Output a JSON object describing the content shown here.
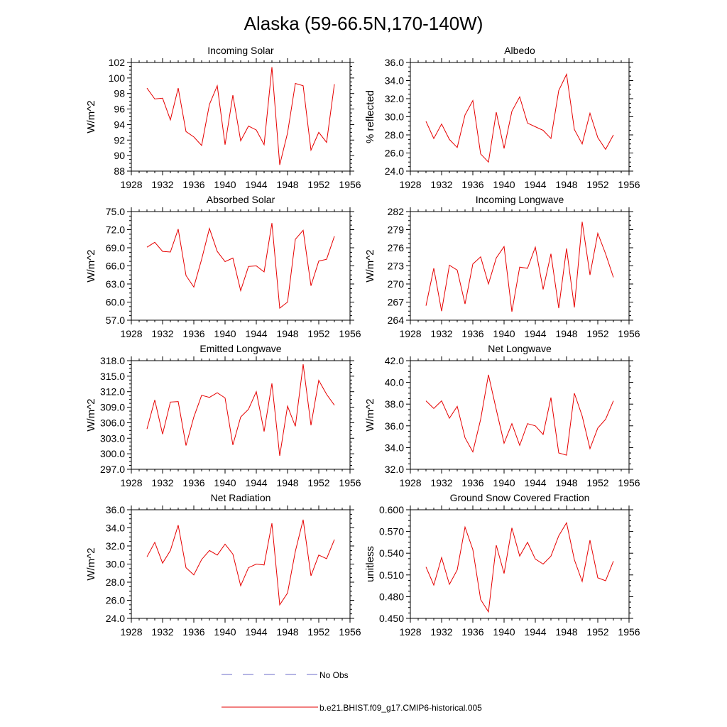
{
  "figure": {
    "title": "Alaska (59-66.5N,170-140W)"
  },
  "legend": [
    {
      "label": "No Obs",
      "color": "#6b6bc8",
      "style": "dashed"
    },
    {
      "label": "b.e21.BHIST.f09_g17.CMIP6-historical.005",
      "color": "#e60000",
      "style": "solid"
    }
  ],
  "chart_data": [
    {
      "type": "line",
      "title": "Incoming Solar",
      "ylabel": "W/m^2",
      "xlim": [
        1928,
        1956
      ],
      "ylim": [
        88,
        102
      ],
      "yticks": [
        88,
        90,
        92,
        94,
        96,
        98,
        100,
        102
      ],
      "ytick_labels": [
        "88",
        "90",
        "92",
        "94",
        "96",
        "98",
        "100",
        "102"
      ],
      "xticks": [
        1928,
        1932,
        1936,
        1940,
        1944,
        1948,
        1952,
        1956
      ],
      "xtick_labels": [
        "1928",
        "1932",
        "1936",
        "1940",
        "1944",
        "1948",
        "1952",
        "1956"
      ],
      "series": [
        {
          "color": "#e60000",
          "x": [
            1930,
            1931,
            1932,
            1933,
            1934,
            1935,
            1936,
            1937,
            1938,
            1939,
            1940,
            1941,
            1942,
            1943,
            1944,
            1945,
            1946,
            1947,
            1948,
            1949,
            1950,
            1951,
            1952,
            1953,
            1954
          ],
          "y": [
            98.7,
            97.3,
            97.4,
            94.6,
            98.7,
            93.1,
            92.4,
            91.3,
            96.6,
            99.0,
            91.4,
            97.8,
            91.9,
            93.8,
            93.3,
            91.4,
            101.4,
            88.8,
            92.9,
            99.3,
            99.0,
            90.7,
            93.0,
            91.7,
            99.2
          ]
        }
      ]
    },
    {
      "type": "line",
      "title": "Albedo",
      "ylabel": "% reflected",
      "xlim": [
        1928,
        1956
      ],
      "ylim": [
        24,
        36
      ],
      "yticks": [
        24,
        26,
        28,
        30,
        32,
        34,
        36
      ],
      "ytick_labels": [
        "24.0",
        "26.0",
        "28.0",
        "30.0",
        "32.0",
        "34.0",
        "36.0"
      ],
      "xticks": [
        1928,
        1932,
        1936,
        1940,
        1944,
        1948,
        1952,
        1956
      ],
      "xtick_labels": [
        "1928",
        "1932",
        "1936",
        "1940",
        "1944",
        "1948",
        "1952",
        "1956"
      ],
      "series": [
        {
          "color": "#e60000",
          "x": [
            1930,
            1931,
            1932,
            1933,
            1934,
            1935,
            1936,
            1937,
            1938,
            1939,
            1940,
            1941,
            1942,
            1943,
            1944,
            1945,
            1946,
            1947,
            1948,
            1949,
            1950,
            1951,
            1952,
            1953,
            1954
          ],
          "y": [
            29.5,
            27.6,
            29.2,
            27.5,
            26.6,
            30.2,
            31.8,
            25.9,
            25.0,
            30.5,
            26.5,
            30.6,
            32.2,
            29.3,
            28.9,
            28.5,
            27.6,
            32.9,
            34.7,
            28.6,
            27.0,
            30.4,
            27.7,
            26.4,
            28.0
          ]
        }
      ]
    },
    {
      "type": "line",
      "title": "Absorbed Solar",
      "ylabel": "W/m^2",
      "xlim": [
        1928,
        1956
      ],
      "ylim": [
        57,
        75
      ],
      "yticks": [
        57,
        60,
        63,
        66,
        69,
        72,
        75
      ],
      "ytick_labels": [
        "57.0",
        "60.0",
        "63.0",
        "66.0",
        "69.0",
        "72.0",
        "75.0"
      ],
      "xticks": [
        1928,
        1932,
        1936,
        1940,
        1944,
        1948,
        1952,
        1956
      ],
      "xtick_labels": [
        "1928",
        "1932",
        "1936",
        "1940",
        "1944",
        "1948",
        "1952",
        "1956"
      ],
      "series": [
        {
          "color": "#e60000",
          "x": [
            1930,
            1931,
            1932,
            1933,
            1934,
            1935,
            1936,
            1937,
            1938,
            1939,
            1940,
            1941,
            1942,
            1943,
            1944,
            1945,
            1946,
            1947,
            1948,
            1949,
            1950,
            1951,
            1952,
            1953,
            1954
          ],
          "y": [
            69.1,
            69.9,
            68.4,
            68.3,
            72.1,
            64.4,
            62.5,
            67.1,
            72.2,
            68.4,
            66.7,
            67.3,
            61.9,
            65.9,
            66.0,
            65.0,
            73.1,
            59.0,
            60.0,
            70.4,
            71.9,
            62.7,
            66.8,
            67.1,
            70.9
          ]
        }
      ]
    },
    {
      "type": "line",
      "title": "Incoming Longwave",
      "ylabel": "W/m^2",
      "xlim": [
        1928,
        1956
      ],
      "ylim": [
        264,
        282
      ],
      "yticks": [
        264,
        267,
        270,
        273,
        276,
        279,
        282
      ],
      "ytick_labels": [
        "264",
        "267",
        "270",
        "273",
        "276",
        "279",
        "282"
      ],
      "xticks": [
        1928,
        1932,
        1936,
        1940,
        1944,
        1948,
        1952,
        1956
      ],
      "xtick_labels": [
        "1928",
        "1932",
        "1936",
        "1940",
        "1944",
        "1948",
        "1952",
        "1956"
      ],
      "series": [
        {
          "color": "#e60000",
          "x": [
            1930,
            1931,
            1932,
            1933,
            1934,
            1935,
            1936,
            1937,
            1938,
            1939,
            1940,
            1941,
            1942,
            1943,
            1944,
            1945,
            1946,
            1947,
            1948,
            1949,
            1950,
            1951,
            1952,
            1953,
            1954
          ],
          "y": [
            266.4,
            272.6,
            265.5,
            273.1,
            272.3,
            266.7,
            273.3,
            274.5,
            270.0,
            274.3,
            276.2,
            265.4,
            272.8,
            272.6,
            276.1,
            269.1,
            275.0,
            266.0,
            275.9,
            266.1,
            280.3,
            271.5,
            278.4,
            275.0,
            271.1
          ]
        }
      ]
    },
    {
      "type": "line",
      "title": "Emitted Longwave",
      "ylabel": "W/m^2",
      "xlim": [
        1928,
        1956
      ],
      "ylim": [
        297,
        318
      ],
      "yticks": [
        297,
        300,
        303,
        306,
        309,
        312,
        315,
        318
      ],
      "ytick_labels": [
        "297.0",
        "300.0",
        "303.0",
        "306.0",
        "309.0",
        "312.0",
        "315.0",
        "318.0"
      ],
      "xticks": [
        1928,
        1932,
        1936,
        1940,
        1944,
        1948,
        1952,
        1956
      ],
      "xtick_labels": [
        "1928",
        "1932",
        "1936",
        "1940",
        "1944",
        "1948",
        "1952",
        "1956"
      ],
      "series": [
        {
          "color": "#e60000",
          "x": [
            1930,
            1931,
            1932,
            1933,
            1934,
            1935,
            1936,
            1937,
            1938,
            1939,
            1940,
            1941,
            1942,
            1943,
            1944,
            1945,
            1946,
            1947,
            1948,
            1949,
            1950,
            1951,
            1952,
            1953,
            1954
          ],
          "y": [
            304.8,
            310.4,
            303.8,
            310.0,
            310.1,
            301.6,
            307.1,
            311.3,
            310.9,
            311.8,
            310.8,
            301.7,
            307.1,
            308.6,
            312.0,
            304.3,
            313.6,
            299.6,
            309.2,
            305.3,
            317.3,
            305.5,
            314.2,
            311.5,
            309.4
          ]
        }
      ]
    },
    {
      "type": "line",
      "title": "Net Longwave",
      "ylabel": "W/m^2",
      "xlim": [
        1928,
        1956
      ],
      "ylim": [
        32,
        42
      ],
      "yticks": [
        32,
        34,
        36,
        38,
        40,
        42
      ],
      "ytick_labels": [
        "32.0",
        "34.0",
        "36.0",
        "38.0",
        "40.0",
        "42.0"
      ],
      "xticks": [
        1928,
        1932,
        1936,
        1940,
        1944,
        1948,
        1952,
        1956
      ],
      "xtick_labels": [
        "1928",
        "1932",
        "1936",
        "1940",
        "1944",
        "1948",
        "1952",
        "1956"
      ],
      "series": [
        {
          "color": "#e60000",
          "x": [
            1930,
            1931,
            1932,
            1933,
            1934,
            1935,
            1936,
            1937,
            1938,
            1939,
            1940,
            1941,
            1942,
            1943,
            1944,
            1945,
            1946,
            1947,
            1948,
            1949,
            1950,
            1951,
            1952,
            1953,
            1954
          ],
          "y": [
            38.3,
            37.6,
            38.3,
            36.7,
            37.8,
            34.9,
            33.6,
            36.6,
            40.7,
            37.5,
            34.4,
            36.2,
            34.2,
            36.2,
            36.0,
            35.2,
            38.6,
            33.5,
            33.3,
            39.0,
            36.9,
            33.9,
            35.8,
            36.6,
            38.3
          ]
        }
      ]
    },
    {
      "type": "line",
      "title": "Net Radiation",
      "ylabel": "W/m^2",
      "xlim": [
        1928,
        1956
      ],
      "ylim": [
        24,
        36
      ],
      "yticks": [
        24,
        26,
        28,
        30,
        32,
        34,
        36
      ],
      "ytick_labels": [
        "24.0",
        "26.0",
        "28.0",
        "30.0",
        "32.0",
        "34.0",
        "36.0"
      ],
      "xticks": [
        1928,
        1932,
        1936,
        1940,
        1944,
        1948,
        1952,
        1956
      ],
      "xtick_labels": [
        "1928",
        "1932",
        "1936",
        "1940",
        "1944",
        "1948",
        "1952",
        "1956"
      ],
      "series": [
        {
          "color": "#e60000",
          "x": [
            1930,
            1931,
            1932,
            1933,
            1934,
            1935,
            1936,
            1937,
            1938,
            1939,
            1940,
            1941,
            1942,
            1943,
            1944,
            1945,
            1946,
            1947,
            1948,
            1949,
            1950,
            1951,
            1952,
            1953,
            1954
          ],
          "y": [
            30.8,
            32.4,
            30.1,
            31.5,
            34.3,
            29.6,
            28.8,
            30.5,
            31.5,
            31.0,
            32.2,
            31.1,
            27.6,
            29.6,
            30.0,
            29.9,
            34.5,
            25.5,
            26.8,
            31.4,
            34.9,
            28.7,
            31.0,
            30.6,
            32.7
          ]
        }
      ]
    },
    {
      "type": "line",
      "title": "Ground Snow Covered Fraction",
      "ylabel": "unitless",
      "xlim": [
        1928,
        1956
      ],
      "ylim": [
        0.45,
        0.6
      ],
      "yticks": [
        0.45,
        0.48,
        0.51,
        0.54,
        0.57,
        0.6
      ],
      "ytick_labels": [
        "0.450",
        "0.480",
        "0.510",
        "0.540",
        "0.570",
        "0.600"
      ],
      "xticks": [
        1928,
        1932,
        1936,
        1940,
        1944,
        1948,
        1952,
        1956
      ],
      "xtick_labels": [
        "1928",
        "1932",
        "1936",
        "1940",
        "1944",
        "1948",
        "1952",
        "1956"
      ],
      "series": [
        {
          "color": "#e60000",
          "x": [
            1930,
            1931,
            1932,
            1933,
            1934,
            1935,
            1936,
            1937,
            1938,
            1939,
            1940,
            1941,
            1942,
            1943,
            1944,
            1945,
            1946,
            1947,
            1948,
            1949,
            1950,
            1951,
            1952,
            1953,
            1954
          ],
          "y": [
            0.521,
            0.496,
            0.534,
            0.497,
            0.517,
            0.576,
            0.545,
            0.476,
            0.459,
            0.551,
            0.512,
            0.575,
            0.536,
            0.555,
            0.532,
            0.525,
            0.536,
            0.564,
            0.582,
            0.531,
            0.501,
            0.558,
            0.506,
            0.502,
            0.529
          ]
        }
      ]
    }
  ]
}
